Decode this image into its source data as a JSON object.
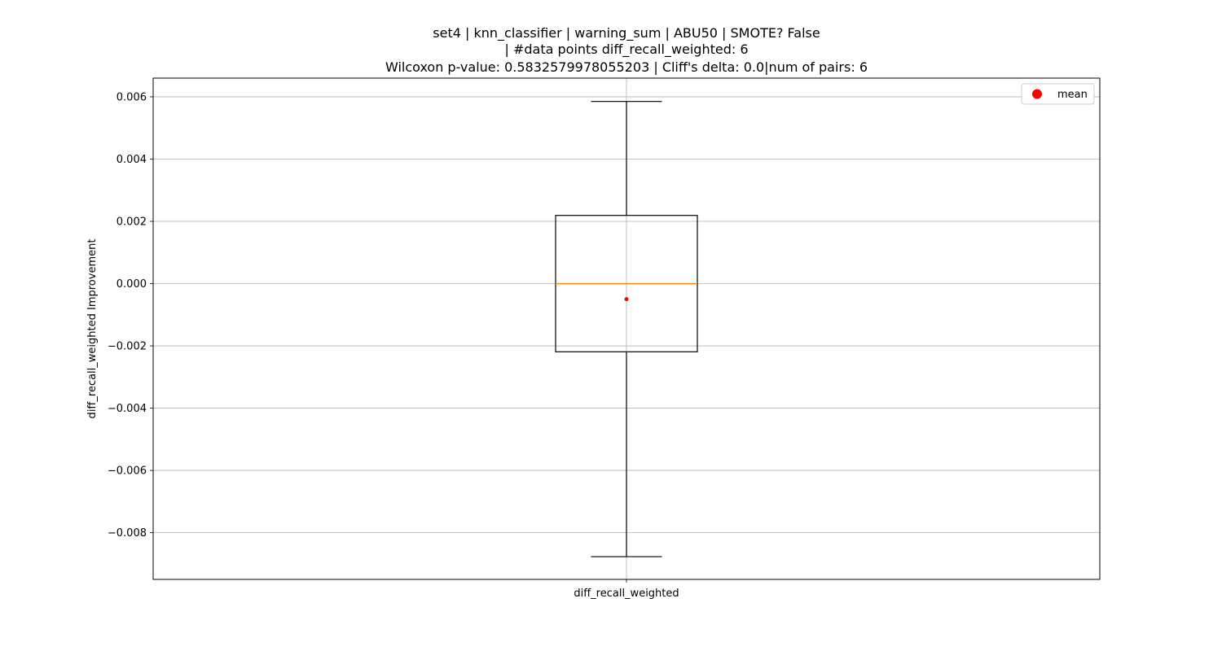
{
  "chart_data": {
    "type": "box",
    "title": [
      "set4 | knn_classifier | warning_sum | ABU50 | SMOTE? False",
      "| #data points diff_recall_weighted: 6",
      "Wilcoxon p-value: 0.5832579978055203 | Cliff's delta: 0.0|num of pairs: 6"
    ],
    "xlabel": "",
    "ylabel": "diff_recall_weighted Improvement",
    "categories": [
      "diff_recall_weighted"
    ],
    "ylim": [
      -0.0095,
      0.0066
    ],
    "yticks": [
      -0.008,
      -0.006,
      -0.004,
      -0.002,
      0.0,
      0.002,
      0.004,
      0.006
    ],
    "ytick_labels": [
      "−0.008",
      "−0.006",
      "−0.004",
      "−0.002",
      "0.000",
      "0.002",
      "0.004",
      "0.006"
    ],
    "grid": true,
    "legend_position": "top-right",
    "legend": [
      {
        "label": "mean",
        "color": "#ff0000"
      }
    ],
    "boxes": [
      {
        "category": "diff_recall_weighted",
        "whisker_low": -0.00877,
        "q1": -0.00219,
        "median": 0.0,
        "q3": 0.00219,
        "whisker_high": 0.00585,
        "mean": -0.0005
      }
    ],
    "colors": {
      "box": "#000000",
      "median": "#ff7f0e",
      "mean": "#ff0000",
      "grid": "#b0b0b0"
    }
  }
}
